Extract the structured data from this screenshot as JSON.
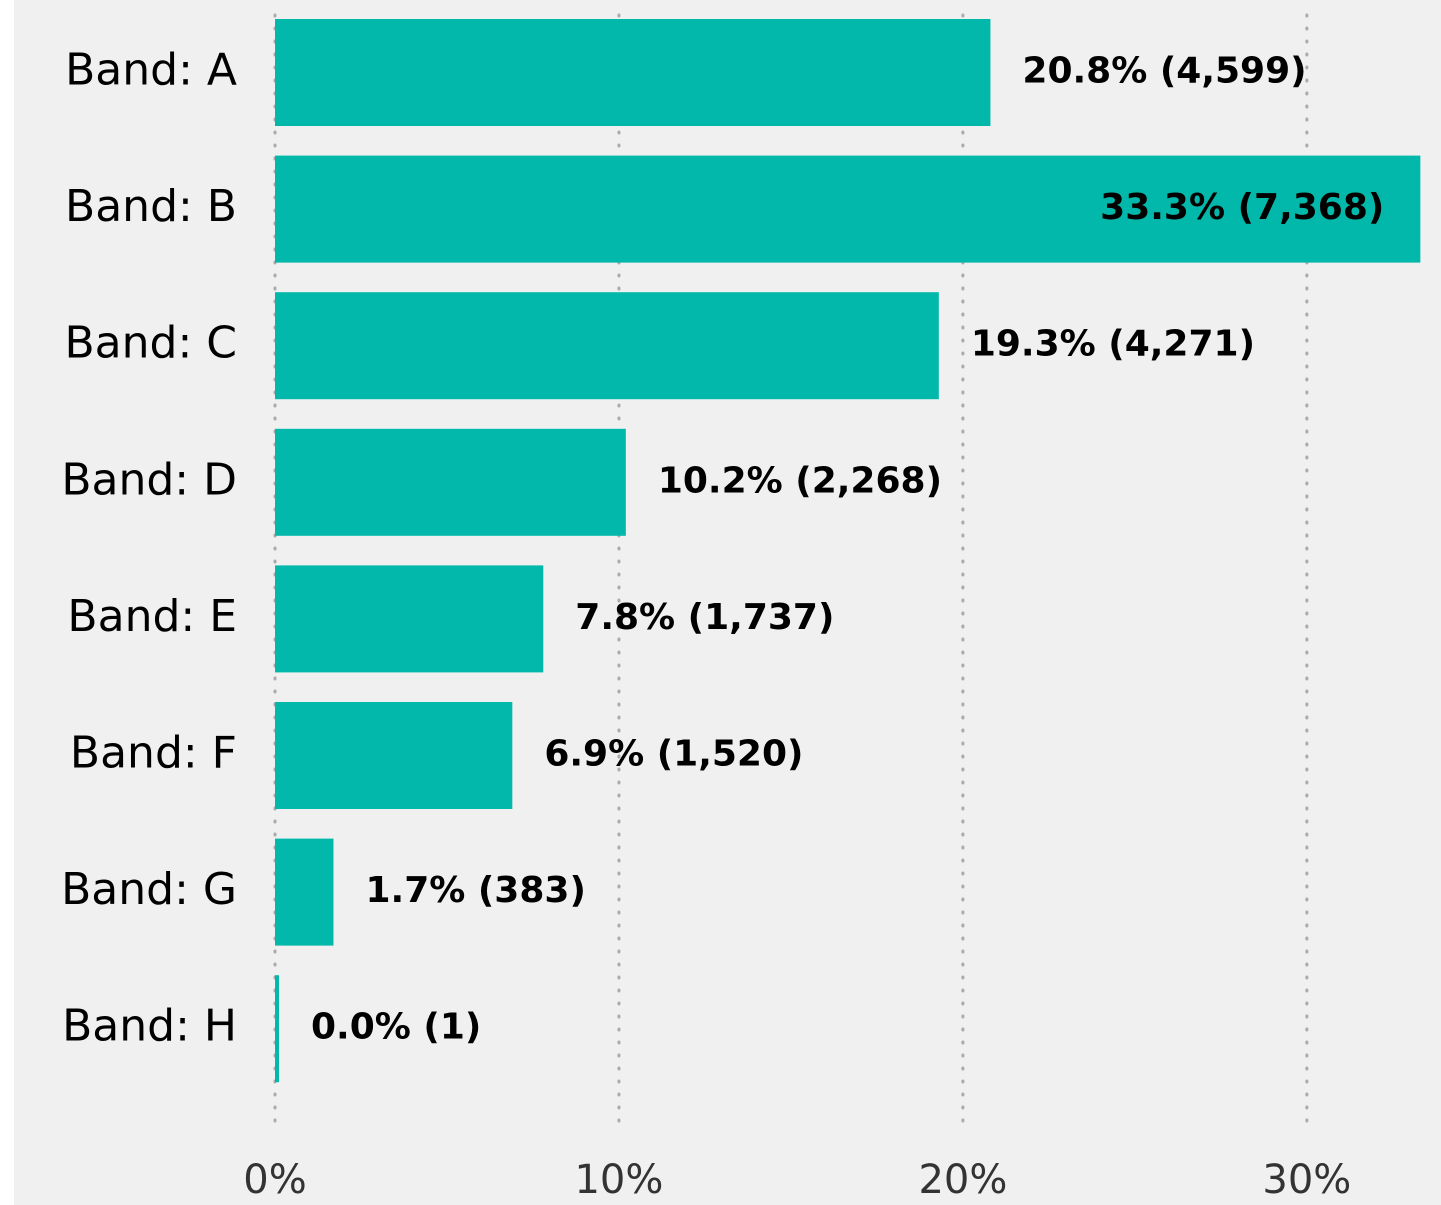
{
  "chart_data": {
    "type": "hbar",
    "categories": [
      "Band: A",
      "Band: B",
      "Band: C",
      "Band: D",
      "Band: E",
      "Band: F",
      "Band: G",
      "Band: H"
    ],
    "values": [
      20.8,
      33.3,
      19.3,
      10.2,
      7.8,
      6.9,
      1.7,
      0.0
    ],
    "value_labels": [
      "20.8% (4,599)",
      "33.3% (7,368)",
      "19.3% (4,271)",
      "10.2% (2,268)",
      "7.8% (1,737)",
      "6.9% (1,520)",
      "1.7% (383)",
      "0.0% (1)"
    ],
    "color": "#02b8aa",
    "xlim": [
      0,
      33.9
    ],
    "xticks": [
      {
        "value": 0,
        "label": "0%"
      },
      {
        "value": 10,
        "label": "10%"
      },
      {
        "value": 20,
        "label": "20%"
      },
      {
        "value": 30,
        "label": "30%"
      }
    ],
    "grid": true
  }
}
